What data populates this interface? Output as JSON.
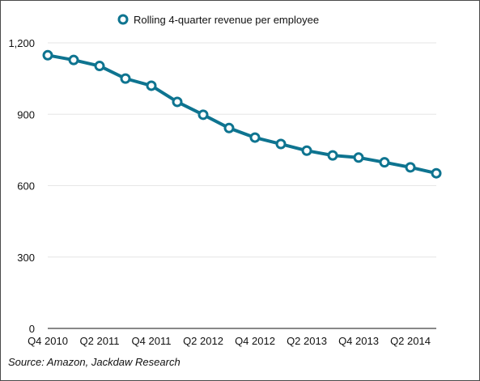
{
  "chart_data": {
    "type": "line",
    "legend": {
      "label": "Rolling 4-quarter revenue per employee",
      "position": "top-center"
    },
    "x": [
      "Q4 2010",
      "Q1 2011",
      "Q2 2011",
      "Q3 2011",
      "Q4 2011",
      "Q1 2012",
      "Q2 2012",
      "Q3 2012",
      "Q4 2012",
      "Q1 2013",
      "Q2 2013",
      "Q3 2013",
      "Q4 2013",
      "Q1 2014",
      "Q2 2014",
      "Q3 2014"
    ],
    "x_tick_labels": [
      "Q4 2010",
      "Q2 2011",
      "Q4 2011",
      "Q2 2012",
      "Q4 2012",
      "Q2 2013",
      "Q4 2013",
      "Q2 2014"
    ],
    "series": [
      {
        "name": "Rolling 4-quarter revenue per employee",
        "color": "#0e7490",
        "values": [
          1148,
          1128,
          1103,
          1050,
          1020,
          952,
          898,
          842,
          802,
          775,
          747,
          727,
          718,
          698,
          677,
          652
        ]
      }
    ],
    "y_ticks": [
      0,
      300,
      600,
      900,
      1200
    ],
    "y_tick_labels": [
      "0",
      "300",
      "600",
      "900",
      "1,200"
    ],
    "ylim": [
      0,
      1200
    ],
    "grid": true,
    "source": "Source: Amazon, Jackdaw Research"
  }
}
